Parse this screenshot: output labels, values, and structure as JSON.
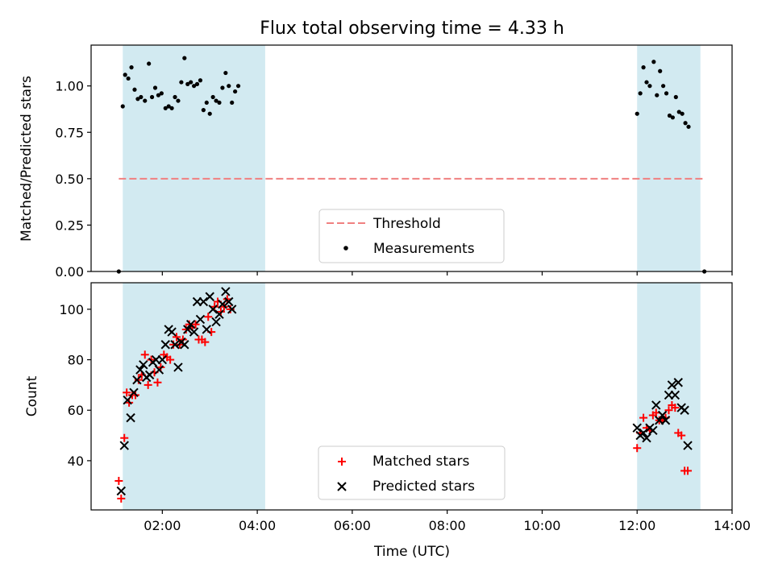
{
  "chart_data": [
    {
      "type": "scatter",
      "title": "Flux total observing time = 4.33 h",
      "ylabel": "Matched/Predicted stars",
      "xlabel": "",
      "xlim": [
        "00:30",
        "14:00"
      ],
      "ylim": [
        0,
        1.22
      ],
      "yticks": [
        "0.00",
        "0.25",
        "0.50",
        "0.75",
        "1.00"
      ],
      "xtick_labels_shown": false,
      "grid": false,
      "legend_placement": "lower-center",
      "shaded_intervals": [
        [
          "01:10",
          "04:10"
        ],
        [
          "12:00",
          "13:20"
        ]
      ],
      "shade_color": "#add8e6",
      "threshold": {
        "name": "Threshold",
        "value": 0.5,
        "x_range": [
          "01:05",
          "13:25"
        ],
        "color": "#f08080",
        "style": "dashed"
      },
      "series": [
        {
          "name": "Measurements",
          "marker": "dot",
          "color": "#000000",
          "points": [
            [
              "01:05",
              0.0
            ],
            [
              "01:10",
              0.89
            ],
            [
              "01:13",
              1.06
            ],
            [
              "01:17",
              1.04
            ],
            [
              "01:21",
              1.1
            ],
            [
              "01:25",
              0.98
            ],
            [
              "01:29",
              0.93
            ],
            [
              "01:33",
              0.94
            ],
            [
              "01:38",
              0.92
            ],
            [
              "01:43",
              1.12
            ],
            [
              "01:47",
              0.94
            ],
            [
              "01:51",
              0.99
            ],
            [
              "01:55",
              0.95
            ],
            [
              "01:59",
              0.96
            ],
            [
              "02:04",
              0.88
            ],
            [
              "02:08",
              0.89
            ],
            [
              "02:12",
              0.88
            ],
            [
              "02:16",
              0.94
            ],
            [
              "02:20",
              0.92
            ],
            [
              "02:24",
              1.02
            ],
            [
              "02:28",
              1.15
            ],
            [
              "02:32",
              1.01
            ],
            [
              "02:36",
              1.02
            ],
            [
              "02:40",
              1.0
            ],
            [
              "02:44",
              1.01
            ],
            [
              "02:48",
              1.03
            ],
            [
              "02:52",
              0.87
            ],
            [
              "02:56",
              0.91
            ],
            [
              "03:00",
              0.85
            ],
            [
              "03:04",
              0.94
            ],
            [
              "03:08",
              0.92
            ],
            [
              "03:12",
              0.91
            ],
            [
              "03:16",
              0.99
            ],
            [
              "03:20",
              1.07
            ],
            [
              "03:24",
              1.0
            ],
            [
              "03:28",
              0.91
            ],
            [
              "03:32",
              0.97
            ],
            [
              "03:36",
              1.0
            ],
            [
              "12:00",
              0.85
            ],
            [
              "12:04",
              0.96
            ],
            [
              "12:08",
              1.1
            ],
            [
              "12:12",
              1.02
            ],
            [
              "12:16",
              1.0
            ],
            [
              "12:21",
              1.13
            ],
            [
              "12:25",
              0.95
            ],
            [
              "12:29",
              1.08
            ],
            [
              "12:33",
              1.0
            ],
            [
              "12:37",
              0.96
            ],
            [
              "12:41",
              0.84
            ],
            [
              "12:45",
              0.83
            ],
            [
              "12:49",
              0.94
            ],
            [
              "12:53",
              0.86
            ],
            [
              "12:57",
              0.85
            ],
            [
              "13:01",
              0.8
            ],
            [
              "13:05",
              0.78
            ],
            [
              "13:25",
              0.0
            ]
          ]
        }
      ]
    },
    {
      "type": "scatter",
      "title": "",
      "xlabel": "Time (UTC)",
      "ylabel": "Count",
      "xlim": [
        "00:30",
        "14:00"
      ],
      "ylim": [
        20.5,
        110.5
      ],
      "xticks": [
        "02:00",
        "04:00",
        "06:00",
        "08:00",
        "10:00",
        "12:00",
        "14:00"
      ],
      "yticks": [
        "40",
        "60",
        "80",
        "100"
      ],
      "grid": false,
      "legend_placement": "lower-center",
      "shaded_intervals": [
        [
          "01:10",
          "04:10"
        ],
        [
          "12:00",
          "13:20"
        ]
      ],
      "shade_color": "#add8e6",
      "series": [
        {
          "name": "Matched stars",
          "marker": "plus",
          "color": "#ff0000",
          "points": [
            [
              "01:05",
              32
            ],
            [
              "01:08",
              25
            ],
            [
              "01:12",
              49
            ],
            [
              "01:15",
              67
            ],
            [
              "01:18",
              63
            ],
            [
              "01:22",
              66
            ],
            [
              "01:26",
              66
            ],
            [
              "01:30",
              72
            ],
            [
              "01:34",
              74
            ],
            [
              "01:38",
              82
            ],
            [
              "01:42",
              70
            ],
            [
              "01:46",
              80
            ],
            [
              "01:50",
              75
            ],
            [
              "01:54",
              71
            ],
            [
              "01:58",
              77
            ],
            [
              "02:02",
              82
            ],
            [
              "02:06",
              81
            ],
            [
              "02:10",
              80
            ],
            [
              "02:14",
              86
            ],
            [
              "02:18",
              89
            ],
            [
              "02:22",
              86
            ],
            [
              "02:26",
              88
            ],
            [
              "02:30",
              92
            ],
            [
              "02:34",
              94
            ],
            [
              "02:38",
              93
            ],
            [
              "02:42",
              94
            ],
            [
              "02:46",
              88
            ],
            [
              "02:50",
              88
            ],
            [
              "02:54",
              87
            ],
            [
              "02:58",
              97
            ],
            [
              "03:02",
              91
            ],
            [
              "03:06",
              101
            ],
            [
              "03:10",
              103
            ],
            [
              "03:14",
              99
            ],
            [
              "03:18",
              101
            ],
            [
              "03:22",
              104
            ],
            [
              "03:26",
              100
            ],
            [
              "12:00",
              45
            ],
            [
              "12:04",
              51
            ],
            [
              "12:08",
              57
            ],
            [
              "12:12",
              53
            ],
            [
              "12:16",
              52
            ],
            [
              "12:20",
              58
            ],
            [
              "12:24",
              59
            ],
            [
              "12:28",
              56
            ],
            [
              "12:32",
              56
            ],
            [
              "12:36",
              57
            ],
            [
              "12:40",
              60
            ],
            [
              "12:44",
              62
            ],
            [
              "12:48",
              61
            ],
            [
              "12:52",
              51
            ],
            [
              "12:56",
              50
            ],
            [
              "13:00",
              36
            ],
            [
              "13:04",
              36
            ]
          ]
        },
        {
          "name": "Predicted stars",
          "marker": "x",
          "color": "#000000",
          "points": [
            [
              "01:08",
              28
            ],
            [
              "01:12",
              46
            ],
            [
              "01:16",
              64
            ],
            [
              "01:20",
              57
            ],
            [
              "01:24",
              67
            ],
            [
              "01:28",
              72
            ],
            [
              "01:32",
              76
            ],
            [
              "01:36",
              78
            ],
            [
              "01:40",
              73
            ],
            [
              "01:44",
              74
            ],
            [
              "01:48",
              79
            ],
            [
              "01:52",
              80
            ],
            [
              "01:56",
              76
            ],
            [
              "02:00",
              80
            ],
            [
              "02:04",
              86
            ],
            [
              "02:08",
              92
            ],
            [
              "02:12",
              91
            ],
            [
              "02:16",
              86
            ],
            [
              "02:20",
              77
            ],
            [
              "02:24",
              87
            ],
            [
              "02:28",
              86
            ],
            [
              "02:32",
              92
            ],
            [
              "02:36",
              94
            ],
            [
              "02:40",
              91
            ],
            [
              "02:44",
              103
            ],
            [
              "02:48",
              96
            ],
            [
              "02:52",
              103
            ],
            [
              "02:56",
              92
            ],
            [
              "03:00",
              105
            ],
            [
              "03:04",
              100
            ],
            [
              "03:08",
              95
            ],
            [
              "03:12",
              98
            ],
            [
              "03:16",
              102
            ],
            [
              "03:20",
              107
            ],
            [
              "03:24",
              103
            ],
            [
              "03:28",
              100
            ],
            [
              "12:00",
              53
            ],
            [
              "12:04",
              50
            ],
            [
              "12:08",
              51
            ],
            [
              "12:12",
              49
            ],
            [
              "12:16",
              53
            ],
            [
              "12:20",
              52
            ],
            [
              "12:24",
              62
            ],
            [
              "12:28",
              56
            ],
            [
              "12:32",
              58
            ],
            [
              "12:36",
              56
            ],
            [
              "12:40",
              66
            ],
            [
              "12:44",
              70
            ],
            [
              "12:48",
              66
            ],
            [
              "12:52",
              71
            ],
            [
              "12:56",
              61
            ],
            [
              "13:00",
              60
            ],
            [
              "13:04",
              46
            ]
          ]
        }
      ]
    }
  ]
}
